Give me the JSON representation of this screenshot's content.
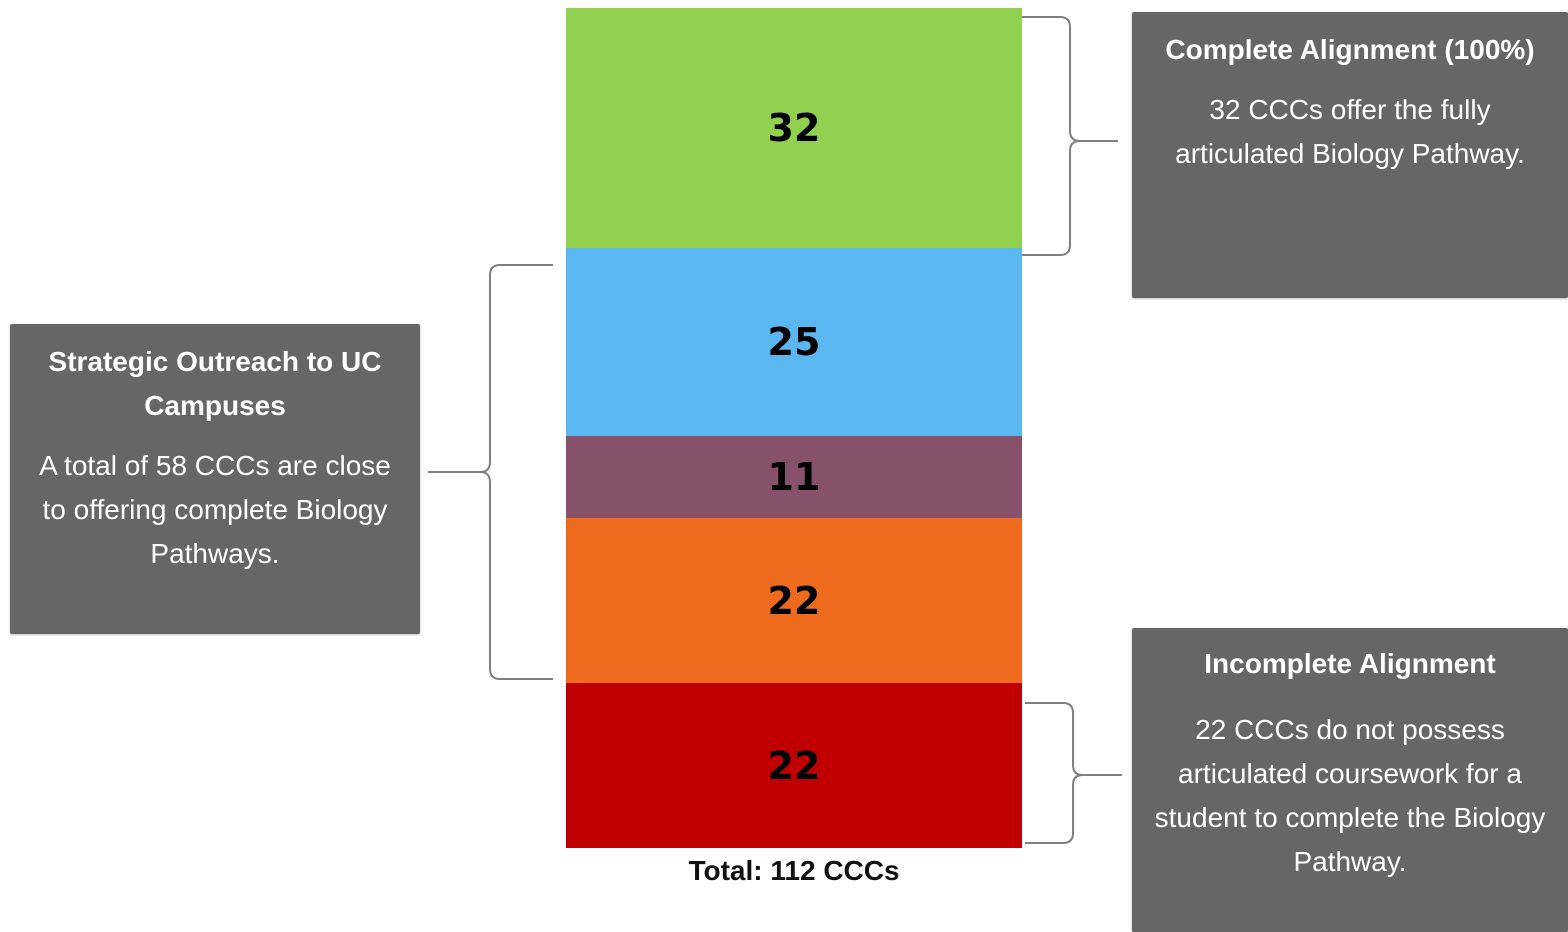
{
  "chart_data": {
    "type": "bar",
    "stacked": true,
    "orientation": "vertical",
    "segments_top_to_bottom": [
      {
        "value": 32,
        "color": "#92d050"
      },
      {
        "value": 25,
        "color": "#5ab7f0"
      },
      {
        "value": 11,
        "color": "#87506b"
      },
      {
        "value": 22,
        "color": "#ee6b1d"
      },
      {
        "value": 22,
        "color": "#c00000"
      }
    ],
    "total": 112,
    "total_label": "Total: 112 CCCs"
  },
  "annotations": {
    "complete": {
      "title": "Complete Alignment (100%)",
      "body": "32 CCCs offer the fully articulated Biology Pathway."
    },
    "outreach": {
      "title": "Strategic Outreach to UC Campuses",
      "body": "A total of 58 CCCs are close to offering complete Biology Pathways."
    },
    "incomplete": {
      "title": "Incomplete Alignment",
      "body": "22 CCCs do not possess articulated coursework for a student to complete the Biology Pathway."
    }
  },
  "colors": {
    "callout_background": "#666666",
    "callout_text": "#ffffff",
    "brace": "#808080"
  }
}
